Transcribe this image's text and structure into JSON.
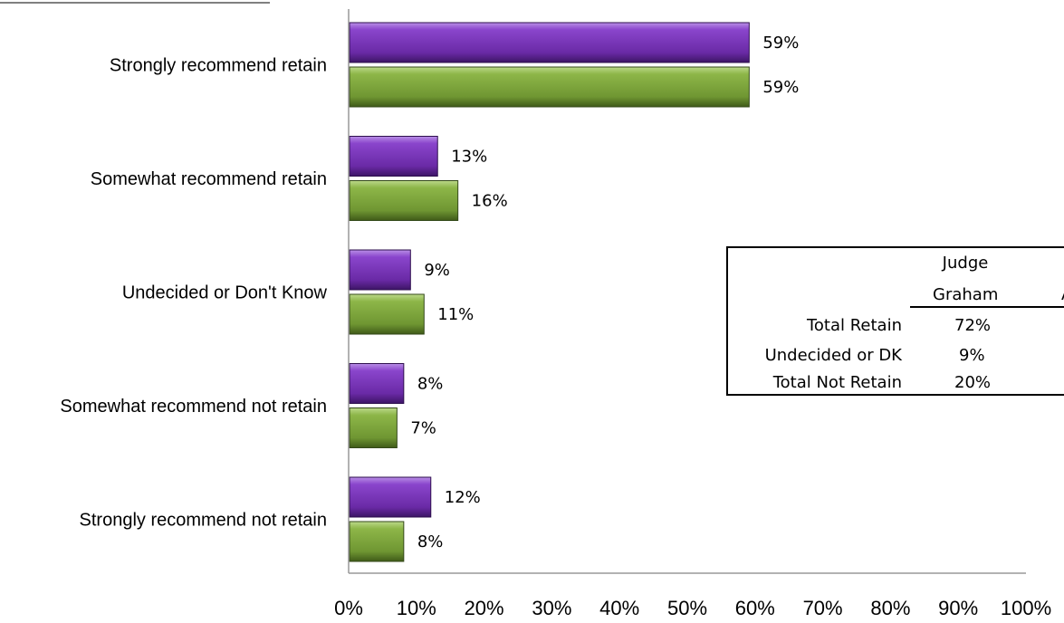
{
  "chart_data": {
    "type": "bar",
    "orientation": "horizontal",
    "categories": [
      "Strongly recommend retain",
      "Somewhat recommend retain",
      "Undecided or Don't Know",
      "Somewhat recommend not retain",
      "Strongly recommend not retain"
    ],
    "series": [
      {
        "values": [
          59,
          13,
          9,
          8,
          12
        ],
        "labels": [
          "59%",
          "13%",
          "9%",
          "8%",
          "12%"
        ],
        "color": "#7a35b8"
      },
      {
        "values": [
          59,
          16,
          11,
          7,
          8
        ],
        "labels": [
          "59%",
          "16%",
          "11%",
          "7%",
          "8%"
        ],
        "color": "#7fa53a"
      }
    ],
    "xlim": [
      0,
      100
    ],
    "xticks": [
      "0%",
      "10%",
      "20%",
      "30%",
      "40%",
      "50%",
      "60%",
      "70%",
      "80%",
      "90%",
      "100%"
    ],
    "grid": false,
    "legend": "none"
  },
  "summary_table": {
    "header_line1": "Judge",
    "header_line2": "Graham",
    "header_next_col": "A",
    "rows": [
      {
        "label": "Total Retain",
        "value": "72%"
      },
      {
        "label": "Undecided or DK",
        "value": "9%"
      },
      {
        "label": "Total Not Retain",
        "value": "20%"
      }
    ]
  }
}
